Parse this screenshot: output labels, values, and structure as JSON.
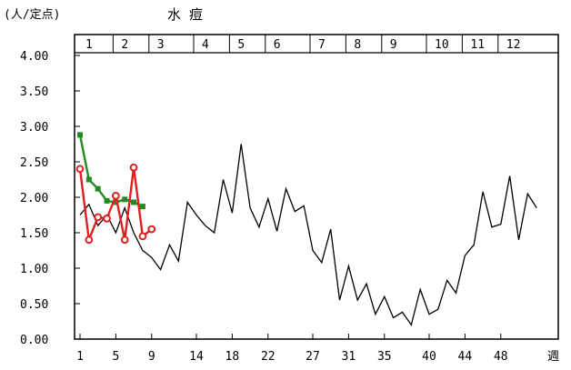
{
  "chart_data": {
    "type": "line",
    "title": "水 痘",
    "unit_label": "(人/定点)",
    "xlabel": "週",
    "ylim": [
      0,
      4
    ],
    "yticks": [
      "4.00",
      "3.50",
      "3.00",
      "2.50",
      "2.00",
      "1.50",
      "1.00",
      "0.50",
      "0.00"
    ],
    "xlim": [
      1,
      53
    ],
    "xticks": [
      1,
      5,
      9,
      14,
      18,
      22,
      27,
      31,
      35,
      40,
      44,
      48
    ],
    "month_labels": [
      "1",
      "2",
      "3",
      "4",
      "5",
      "6",
      "7",
      "8",
      "9",
      "10",
      "11",
      "12"
    ],
    "month_start_weeks": [
      1,
      5,
      9,
      14,
      18,
      22,
      27,
      31,
      35,
      40,
      44,
      48
    ],
    "grid": false,
    "series": [
      {
        "color": "#000000",
        "marker": "none",
        "x": [
          1,
          2,
          3,
          4,
          5,
          6,
          7,
          8,
          9,
          10,
          11,
          12,
          13,
          14,
          15,
          16,
          17,
          18,
          19,
          20,
          21,
          22,
          23,
          24,
          25,
          26,
          27,
          28,
          29,
          30,
          31,
          32,
          33,
          34,
          35,
          36,
          37,
          38,
          39,
          40,
          41,
          42,
          43,
          44,
          45,
          46,
          47,
          48,
          49,
          50,
          51,
          52
        ],
        "values": [
          1.75,
          1.9,
          1.6,
          1.75,
          1.5,
          1.85,
          1.5,
          1.25,
          1.15,
          0.98,
          1.33,
          1.1,
          1.93,
          1.75,
          1.6,
          1.5,
          2.25,
          1.78,
          2.75,
          1.85,
          1.58,
          1.98,
          1.52,
          2.12,
          1.8,
          1.88,
          1.25,
          1.08,
          1.55,
          0.55,
          1.03,
          0.55,
          0.78,
          0.35,
          0.6,
          0.3,
          0.38,
          0.2,
          0.7,
          0.35,
          0.42,
          0.83,
          0.65,
          1.18,
          1.33,
          2.08,
          1.58,
          1.62,
          2.3,
          1.4,
          2.05,
          1.85
        ]
      },
      {
        "color": "#228b22",
        "marker": "square",
        "x": [
          1,
          2,
          3,
          4,
          5,
          6,
          7,
          8
        ],
        "values": [
          2.88,
          2.25,
          2.12,
          1.95,
          1.93,
          1.97,
          1.93,
          1.87
        ]
      },
      {
        "color": "#e02020",
        "marker": "circle",
        "x": [
          1,
          2,
          3,
          4,
          5,
          6,
          7,
          8,
          9
        ],
        "values": [
          2.4,
          1.4,
          1.72,
          1.7,
          2.02,
          1.4,
          2.42,
          1.45,
          1.55
        ]
      }
    ]
  }
}
